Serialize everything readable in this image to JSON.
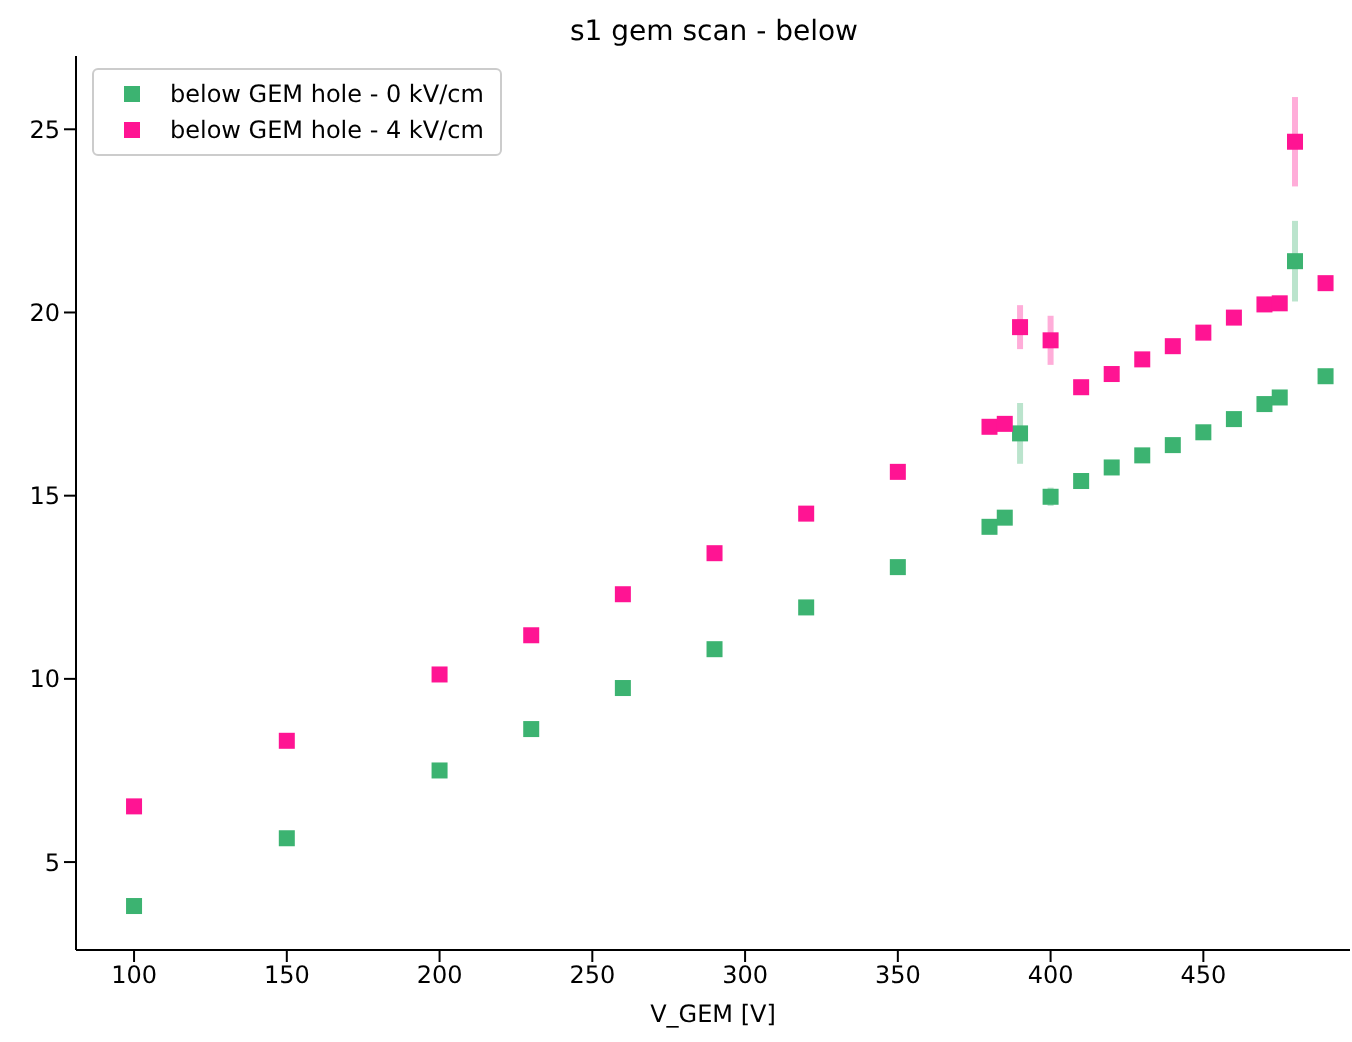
{
  "chart_data": {
    "type": "scatter",
    "title": "s1 gem scan - below",
    "xlabel": "V_GEM [V]",
    "x": [
      100,
      150,
      200,
      230,
      260,
      290,
      320,
      350,
      380,
      385,
      390,
      400,
      410,
      420,
      430,
      440,
      450,
      460,
      470,
      475,
      480,
      490
    ],
    "series": [
      {
        "name": "below GEM hole - 0 kV/cm",
        "color": "#3cb371",
        "values": [
          3.8,
          5.65,
          7.5,
          8.63,
          9.75,
          10.81,
          11.95,
          13.05,
          14.15,
          14.4,
          16.7,
          14.97,
          15.4,
          15.77,
          16.1,
          16.38,
          16.73,
          17.09,
          17.5,
          17.68,
          21.4,
          18.26
        ],
        "errors": [
          null,
          null,
          null,
          null,
          null,
          null,
          null,
          null,
          null,
          null,
          0.83,
          0.25,
          null,
          null,
          null,
          null,
          null,
          null,
          null,
          null,
          1.1,
          null
        ]
      },
      {
        "name": "below GEM hole - 4 kV/cm",
        "color": "#ff1493",
        "values": [
          6.52,
          8.31,
          10.12,
          11.19,
          12.31,
          13.43,
          14.51,
          15.65,
          16.88,
          16.96,
          19.6,
          19.24,
          17.96,
          18.32,
          18.72,
          19.08,
          19.45,
          19.86,
          20.22,
          20.25,
          24.66,
          20.8
        ],
        "errors": [
          null,
          null,
          null,
          null,
          null,
          null,
          null,
          null,
          null,
          null,
          0.6,
          0.67,
          0.2,
          null,
          null,
          null,
          null,
          null,
          null,
          null,
          1.22,
          null
        ]
      }
    ],
    "xlim": [
      81,
      498
    ],
    "xticks": [
      100,
      150,
      200,
      250,
      300,
      350,
      400,
      450
    ],
    "ylim": [
      2.6,
      27
    ],
    "yticks": [
      5,
      10,
      15,
      20,
      25
    ],
    "grid": false,
    "legend": "top left",
    "marker": "square"
  }
}
